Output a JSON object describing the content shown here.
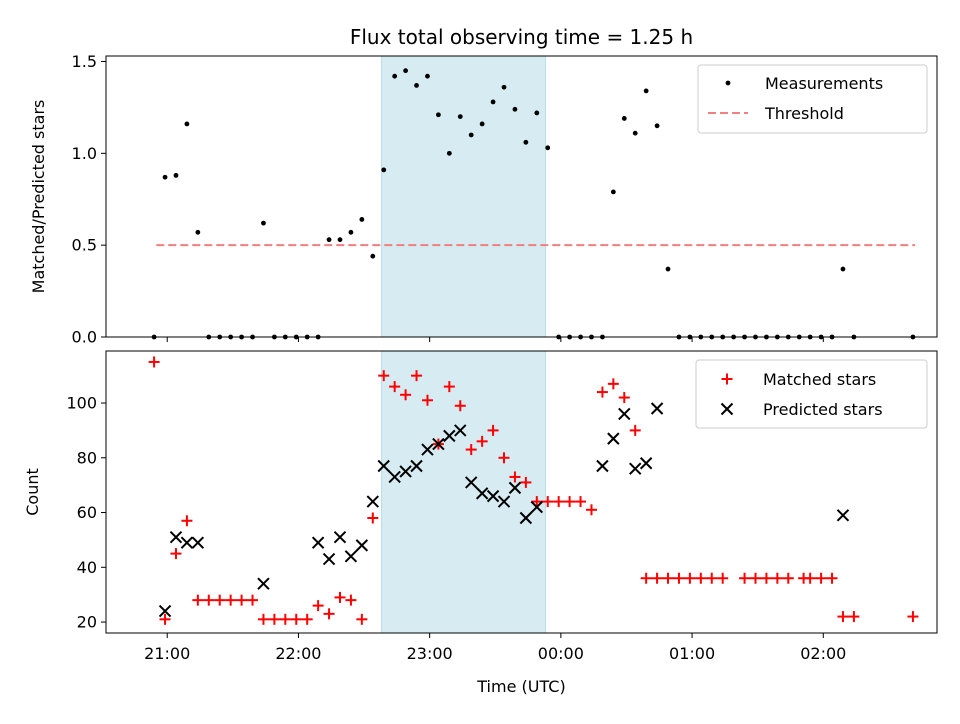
{
  "chart_data": [
    {
      "type": "scatter",
      "panel": "top",
      "title": "Flux total observing time = 1.25 h",
      "ylabel": "Matched/Predicted stars",
      "xlabel": "",
      "ylim": [
        0,
        1.53
      ],
      "yticks": [
        0.0,
        0.5,
        1.0,
        1.5
      ],
      "ytick_labels": [
        "0.0",
        "0.5",
        "1.0",
        "1.5"
      ],
      "shaded_span": [
        "22:38",
        "23:53"
      ],
      "legend": {
        "placement": "top-right",
        "entries": [
          "Measurements",
          "Threshold"
        ]
      },
      "threshold": {
        "name": "Threshold",
        "value": 0.5,
        "x_range": [
          "20:55",
          "02:42"
        ],
        "color": "#f08080"
      },
      "series": [
        {
          "name": "Measurements",
          "color": "#000000",
          "points": [
            [
              "20:54",
              0.0
            ],
            [
              "20:59",
              0.87
            ],
            [
              "21:04",
              0.88
            ],
            [
              "21:09",
              1.16
            ],
            [
              "21:14",
              0.57
            ],
            [
              "21:19",
              0.0
            ],
            [
              "21:24",
              0.0
            ],
            [
              "21:29",
              0.0
            ],
            [
              "21:34",
              0.0
            ],
            [
              "21:39",
              0.0
            ],
            [
              "21:44",
              0.62
            ],
            [
              "21:49",
              0.0
            ],
            [
              "21:54",
              0.0
            ],
            [
              "21:59",
              0.0
            ],
            [
              "22:04",
              0.0
            ],
            [
              "22:09",
              0.0
            ],
            [
              "22:14",
              0.53
            ],
            [
              "22:19",
              0.53
            ],
            [
              "22:24",
              0.57
            ],
            [
              "22:29",
              0.64
            ],
            [
              "22:34",
              0.44
            ],
            [
              "22:39",
              0.91
            ],
            [
              "22:44",
              1.42
            ],
            [
              "22:49",
              1.45
            ],
            [
              "22:54",
              1.37
            ],
            [
              "22:59",
              1.42
            ],
            [
              "23:04",
              1.21
            ],
            [
              "23:09",
              1.0
            ],
            [
              "23:14",
              1.2
            ],
            [
              "23:19",
              1.1
            ],
            [
              "23:24",
              1.16
            ],
            [
              "23:29",
              1.28
            ],
            [
              "23:34",
              1.36
            ],
            [
              "23:39",
              1.24
            ],
            [
              "23:44",
              1.06
            ],
            [
              "23:49",
              1.22
            ],
            [
              "23:54",
              1.03
            ],
            [
              "23:59",
              0.0
            ],
            [
              "00:04",
              0.0
            ],
            [
              "00:09",
              0.0
            ],
            [
              "00:14",
              0.0
            ],
            [
              "00:19",
              0.0
            ],
            [
              "00:24",
              0.79
            ],
            [
              "00:29",
              1.19
            ],
            [
              "00:34",
              1.11
            ],
            [
              "00:39",
              1.34
            ],
            [
              "00:44",
              1.15
            ],
            [
              "00:49",
              0.37
            ],
            [
              "00:54",
              0.0
            ],
            [
              "00:59",
              0.0
            ],
            [
              "01:04",
              0.0
            ],
            [
              "01:09",
              0.0
            ],
            [
              "01:14",
              0.0
            ],
            [
              "01:19",
              0.0
            ],
            [
              "01:24",
              0.0
            ],
            [
              "01:29",
              0.0
            ],
            [
              "01:34",
              0.0
            ],
            [
              "01:39",
              0.0
            ],
            [
              "01:44",
              0.0
            ],
            [
              "01:49",
              0.0
            ],
            [
              "01:54",
              0.0
            ],
            [
              "01:59",
              0.0
            ],
            [
              "02:04",
              0.0
            ],
            [
              "02:09",
              0.37
            ],
            [
              "02:14",
              0.0
            ],
            [
              "02:41",
              0.0
            ]
          ]
        }
      ]
    },
    {
      "type": "scatter",
      "panel": "bottom",
      "title": "",
      "ylabel": "Count",
      "xlabel": "Time (UTC)",
      "xlim": [
        "20:32",
        "02:52"
      ],
      "xticks": [
        "21:00",
        "22:00",
        "23:00",
        "00:00",
        "01:00",
        "02:00"
      ],
      "ylim": [
        16,
        119
      ],
      "yticks": [
        20,
        40,
        60,
        80,
        100
      ],
      "shaded_span": [
        "22:38",
        "23:53"
      ],
      "legend": {
        "placement": "top-right",
        "entries": [
          "Matched stars",
          "Predicted stars"
        ]
      },
      "series": [
        {
          "name": "Matched stars",
          "marker": "plus",
          "color": "#ff0000",
          "points": [
            [
              "20:54",
              115
            ],
            [
              "20:59",
              21
            ],
            [
              "21:04",
              45
            ],
            [
              "21:09",
              57
            ],
            [
              "21:14",
              28
            ],
            [
              "21:19",
              28
            ],
            [
              "21:24",
              28
            ],
            [
              "21:29",
              28
            ],
            [
              "21:34",
              28
            ],
            [
              "21:39",
              28
            ],
            [
              "21:44",
              21
            ],
            [
              "21:49",
              21
            ],
            [
              "21:54",
              21
            ],
            [
              "21:59",
              21
            ],
            [
              "22:04",
              21
            ],
            [
              "22:09",
              26
            ],
            [
              "22:14",
              23
            ],
            [
              "22:19",
              29
            ],
            [
              "22:24",
              28
            ],
            [
              "22:29",
              21
            ],
            [
              "22:34",
              58
            ],
            [
              "22:39",
              110
            ],
            [
              "22:44",
              106
            ],
            [
              "22:49",
              103
            ],
            [
              "22:54",
              110
            ],
            [
              "22:59",
              101
            ],
            [
              "23:04",
              85
            ],
            [
              "23:09",
              106
            ],
            [
              "23:14",
              99
            ],
            [
              "23:19",
              83
            ],
            [
              "23:24",
              86
            ],
            [
              "23:29",
              90
            ],
            [
              "23:34",
              80
            ],
            [
              "23:39",
              73
            ],
            [
              "23:44",
              71
            ],
            [
              "23:49",
              64
            ],
            [
              "23:54",
              64
            ],
            [
              "23:59",
              64
            ],
            [
              "00:04",
              64
            ],
            [
              "00:09",
              64
            ],
            [
              "00:14",
              61
            ],
            [
              "00:19",
              104
            ],
            [
              "00:24",
              107
            ],
            [
              "00:29",
              102
            ],
            [
              "00:34",
              90
            ],
            [
              "00:39",
              36
            ],
            [
              "00:44",
              36
            ],
            [
              "00:49",
              36
            ],
            [
              "00:54",
              36
            ],
            [
              "00:59",
              36
            ],
            [
              "01:04",
              36
            ],
            [
              "01:09",
              36
            ],
            [
              "01:14",
              36
            ],
            [
              "01:24",
              36
            ],
            [
              "01:29",
              36
            ],
            [
              "01:34",
              36
            ],
            [
              "01:39",
              36
            ],
            [
              "01:44",
              36
            ],
            [
              "01:51",
              36
            ],
            [
              "01:54",
              36
            ],
            [
              "01:59",
              36
            ],
            [
              "02:04",
              36
            ],
            [
              "02:09",
              22
            ],
            [
              "02:14",
              22
            ],
            [
              "02:41",
              22
            ]
          ]
        },
        {
          "name": "Predicted stars",
          "marker": "x",
          "color": "#000000",
          "points": [
            [
              "20:59",
              24
            ],
            [
              "21:04",
              51
            ],
            [
              "21:09",
              49
            ],
            [
              "21:14",
              49
            ],
            [
              "21:44",
              34
            ],
            [
              "22:09",
              49
            ],
            [
              "22:14",
              43
            ],
            [
              "22:19",
              51
            ],
            [
              "22:24",
              44
            ],
            [
              "22:29",
              48
            ],
            [
              "22:34",
              64
            ],
            [
              "22:39",
              77
            ],
            [
              "22:44",
              73
            ],
            [
              "22:49",
              75
            ],
            [
              "22:54",
              77
            ],
            [
              "22:59",
              83
            ],
            [
              "23:04",
              85
            ],
            [
              "23:09",
              88
            ],
            [
              "23:14",
              90
            ],
            [
              "23:19",
              71
            ],
            [
              "23:24",
              67
            ],
            [
              "23:29",
              66
            ],
            [
              "23:34",
              64
            ],
            [
              "23:39",
              69
            ],
            [
              "23:44",
              58
            ],
            [
              "23:49",
              62
            ],
            [
              "00:19",
              77
            ],
            [
              "00:24",
              87
            ],
            [
              "00:29",
              96
            ],
            [
              "00:34",
              76
            ],
            [
              "00:39",
              78
            ],
            [
              "00:44",
              98
            ],
            [
              "02:09",
              59
            ]
          ]
        }
      ]
    }
  ]
}
